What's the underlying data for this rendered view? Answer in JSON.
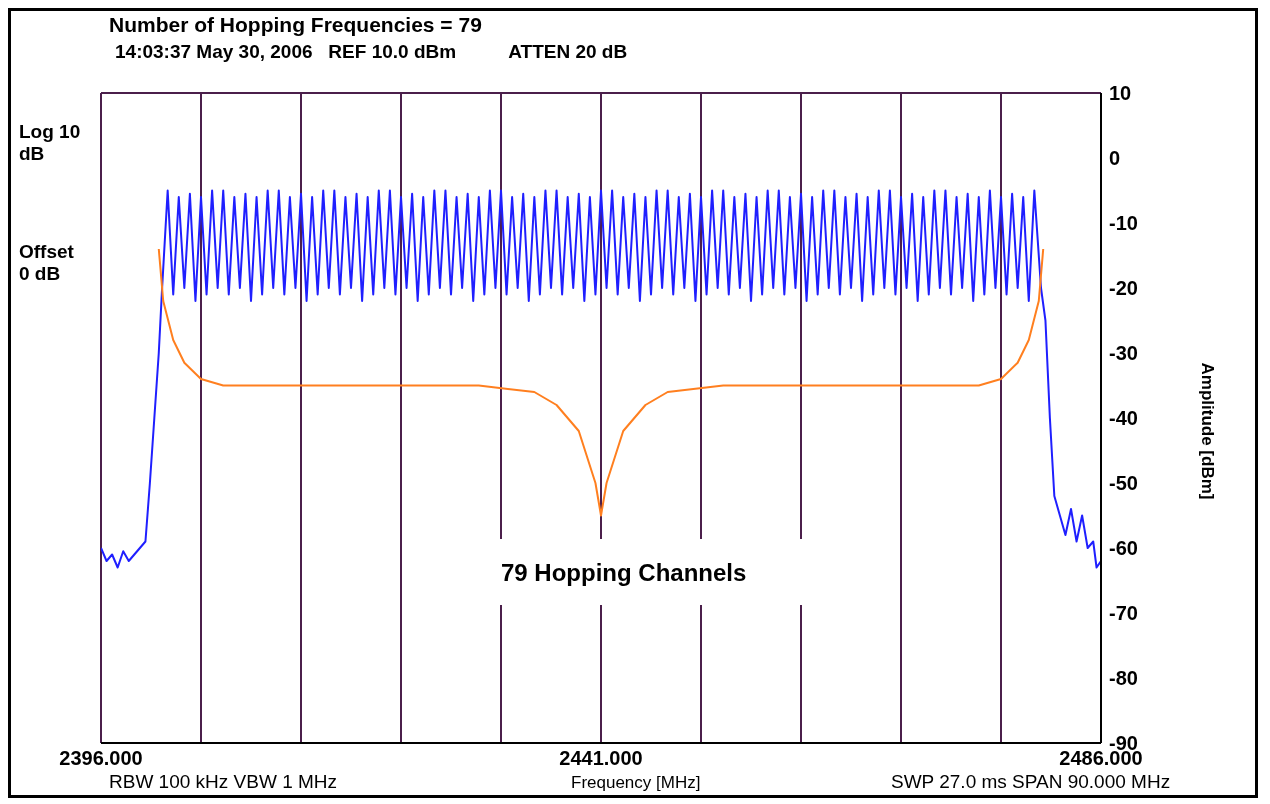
{
  "chart_data": {
    "type": "line",
    "title": "Number of Hopping Frequencies = 79",
    "subtitle": "14:03:37 May 30, 2006   REF 10.0 dBm          ATTEN 20 dB",
    "xlabel": "Frequency [MHz]",
    "ylabel": "Amplitude [dBm]",
    "annotations": [
      "Log 10 dB",
      "Offset 0 dB",
      "79 Hopping Channels",
      "RBW 100 kHz  VBW 1 MHz",
      "SWP 27.0 ms  SPAN 90.000 MHz"
    ],
    "xlim": [
      2396,
      2486
    ],
    "xticks": [
      {
        "value": 2396,
        "label": "2396.000"
      },
      {
        "value": 2405,
        "label": null
      },
      {
        "value": 2414,
        "label": null
      },
      {
        "value": 2423,
        "label": null
      },
      {
        "value": 2432,
        "label": null
      },
      {
        "value": 2441,
        "label": "2441.000"
      },
      {
        "value": 2450,
        "label": null
      },
      {
        "value": 2459,
        "label": null
      },
      {
        "value": 2468,
        "label": null
      },
      {
        "value": 2477,
        "label": null
      },
      {
        "value": 2486,
        "label": "2486.000"
      }
    ],
    "ylim": [
      -90,
      10
    ],
    "yticks": [
      -90,
      -80,
      -70,
      -60,
      -50,
      -40,
      -30,
      -20,
      -10,
      0,
      10
    ],
    "grid": true,
    "line_style": "solid",
    "series": [
      {
        "color": "#1f1fff",
        "x": [
          2396,
          2396.5,
          2397,
          2397.5,
          2398,
          2398.5,
          2399,
          2399.5,
          2400,
          2400.4,
          2400.8,
          2401.2,
          2401.5,
          2402,
          2402.5,
          2403,
          2403.5,
          2404,
          2404.5,
          2405,
          2405.5,
          2406,
          2406.5,
          2407,
          2407.5,
          2408,
          2408.5,
          2409,
          2409.5,
          2410,
          2410.5,
          2411,
          2411.5,
          2412,
          2412.5,
          2413,
          2413.5,
          2414,
          2414.5,
          2415,
          2415.5,
          2416,
          2416.5,
          2417,
          2417.5,
          2418,
          2418.5,
          2419,
          2419.5,
          2420,
          2420.5,
          2421,
          2421.5,
          2422,
          2422.5,
          2423,
          2423.5,
          2424,
          2424.5,
          2425,
          2425.5,
          2426,
          2426.5,
          2427,
          2427.5,
          2428,
          2428.5,
          2429,
          2429.5,
          2430,
          2430.5,
          2431,
          2431.5,
          2432,
          2432.5,
          2433,
          2433.5,
          2434,
          2434.5,
          2435,
          2435.5,
          2436,
          2436.5,
          2437,
          2437.5,
          2438,
          2438.5,
          2439,
          2439.5,
          2440,
          2440.5,
          2441,
          2441.5,
          2442,
          2442.5,
          2443,
          2443.5,
          2444,
          2444.5,
          2445,
          2445.5,
          2446,
          2446.5,
          2447,
          2447.5,
          2448,
          2448.5,
          2449,
          2449.5,
          2450,
          2450.5,
          2451,
          2451.5,
          2452,
          2452.5,
          2453,
          2453.5,
          2454,
          2454.5,
          2455,
          2455.5,
          2456,
          2456.5,
          2457,
          2457.5,
          2458,
          2458.5,
          2459,
          2459.5,
          2460,
          2460.5,
          2461,
          2461.5,
          2462,
          2462.5,
          2463,
          2463.5,
          2464,
          2464.5,
          2465,
          2465.5,
          2466,
          2466.5,
          2467,
          2467.5,
          2468,
          2468.5,
          2469,
          2469.5,
          2470,
          2470.5,
          2471,
          2471.5,
          2472,
          2472.5,
          2473,
          2473.5,
          2474,
          2474.5,
          2475,
          2475.5,
          2476,
          2476.5,
          2477,
          2477.5,
          2478,
          2478.5,
          2479,
          2479.5,
          2480,
          2480.6,
          2481,
          2481.4,
          2481.8,
          2482.3,
          2482.8,
          2483.3,
          2483.8,
          2484.3,
          2484.8,
          2485.3,
          2485.6,
          2486
        ],
        "values": [
          -60,
          -62,
          -61,
          -63,
          -60.5,
          -62,
          -61,
          -60,
          -59,
          -50,
          -40,
          -30,
          -20,
          -5,
          -21,
          -6,
          -20,
          -5.5,
          -22,
          -6,
          -21,
          -5,
          -20,
          -5,
          -21,
          -6,
          -20,
          -5.5,
          -22,
          -6,
          -21,
          -5,
          -20,
          -5,
          -21,
          -6,
          -20,
          -5.5,
          -22,
          -6,
          -21,
          -5,
          -20,
          -5,
          -21,
          -6,
          -20,
          -5.5,
          -22,
          -6,
          -21,
          -5,
          -20,
          -5,
          -21,
          -6,
          -20,
          -5.5,
          -22,
          -6,
          -21,
          -5,
          -20,
          -5,
          -21,
          -6,
          -20,
          -5.5,
          -22,
          -6,
          -21,
          -5,
          -20,
          -5,
          -21,
          -6,
          -20,
          -5.5,
          -22,
          -6,
          -21,
          -5,
          -20,
          -5,
          -21,
          -6,
          -20,
          -5.5,
          -22,
          -6,
          -21,
          -5,
          -20,
          -5,
          -21,
          -6,
          -20,
          -5.5,
          -22,
          -6,
          -21,
          -5,
          -20,
          -5,
          -21,
          -6,
          -20,
          -5.5,
          -22,
          -6,
          -21,
          -5,
          -20,
          -5,
          -21,
          -6,
          -20,
          -5.5,
          -22,
          -6,
          -21,
          -5,
          -20,
          -5,
          -21,
          -6,
          -20,
          -5.5,
          -22,
          -6,
          -21,
          -5,
          -20,
          -5,
          -21,
          -6,
          -20,
          -5.5,
          -22,
          -6,
          -21,
          -5,
          -20,
          -5,
          -21,
          -6,
          -20,
          -5.5,
          -22,
          -6,
          -21,
          -5,
          -20,
          -5,
          -21,
          -6,
          -20,
          -5.5,
          -22,
          -6,
          -21,
          -5,
          -20,
          -6,
          -21,
          -5.5,
          -20,
          -6,
          -22,
          -5,
          -20,
          -25,
          -40,
          -52,
          -55,
          -58,
          -54,
          -59,
          -55,
          -60,
          -59,
          -63,
          -62
        ]
      },
      {
        "color": "#ff7f1f",
        "x": [
          2401.2,
          2401.6,
          2402.5,
          2403.5,
          2405,
          2407,
          2430,
          2435,
          2437,
          2439,
          2440.5,
          2441,
          2441.5,
          2443,
          2445,
          2447,
          2452,
          2475,
          2477,
          2478.5,
          2479.5,
          2480.4,
          2480.8
        ],
        "values": [
          -14,
          -22,
          -28,
          -31.5,
          -34,
          -35,
          -35,
          -36,
          -38,
          -42,
          -50,
          -55,
          -50,
          -42,
          -38,
          -36,
          -35,
          -35,
          -34,
          -31.5,
          -28,
          -22,
          -14
        ]
      }
    ]
  }
}
